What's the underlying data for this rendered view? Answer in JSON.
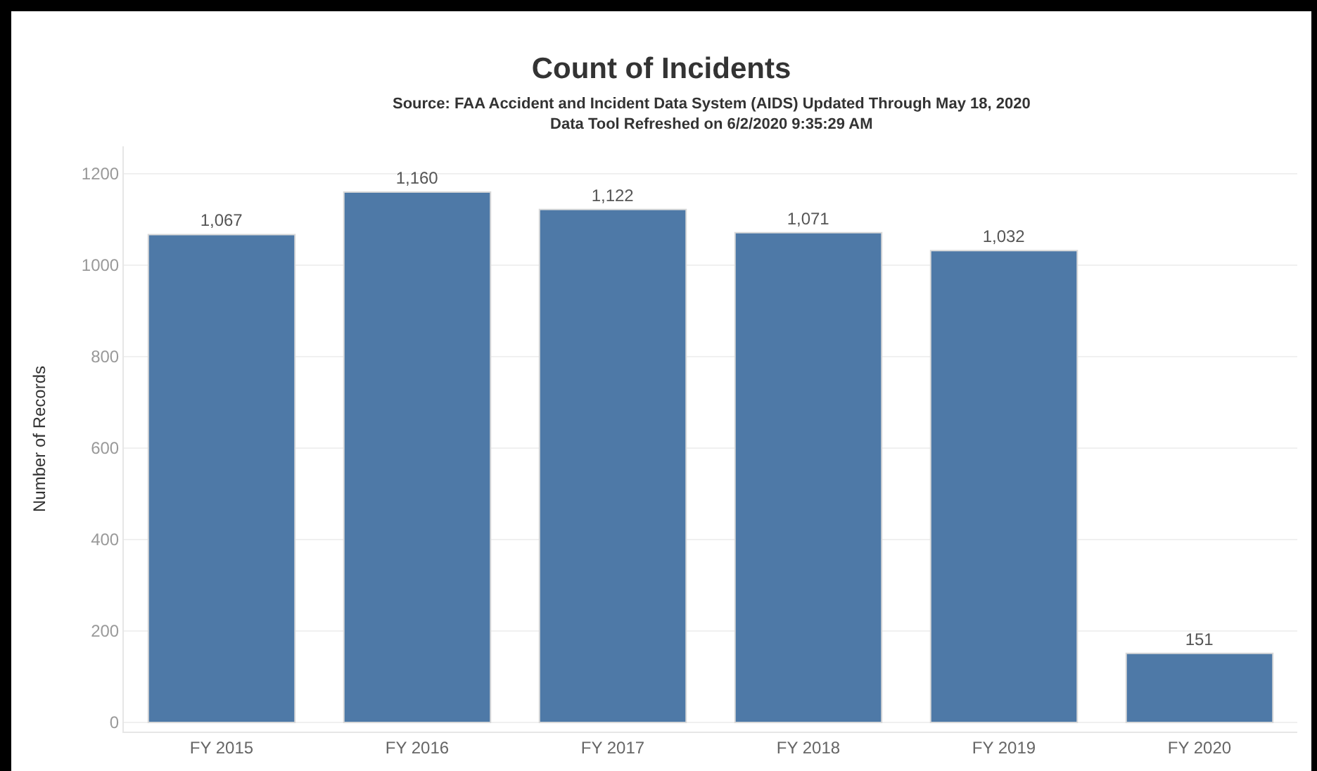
{
  "chart_data": {
    "type": "bar",
    "title": "Count of Incidents",
    "subtitle": "Source: FAA Accident and Incident Data System (AIDS) Updated Through May 18, 2020\nData Tool Refreshed on 6/2/2020 9:35:29 AM",
    "ylabel": "Number of Records",
    "categories": [
      "FY 2015",
      "FY 2016",
      "FY 2017",
      "FY 2018",
      "FY 2019",
      "FY 2020"
    ],
    "values": [
      1067,
      1160,
      1122,
      1071,
      1032,
      151
    ],
    "value_labels": [
      "1,067",
      "1,160",
      "1,122",
      "1,071",
      "1,032",
      "151"
    ],
    "color": "#4e79a7",
    "ylim": [
      -20,
      1260
    ],
    "yticks": [
      0,
      200,
      400,
      600,
      800,
      1000,
      1200
    ],
    "grid": "y"
  }
}
